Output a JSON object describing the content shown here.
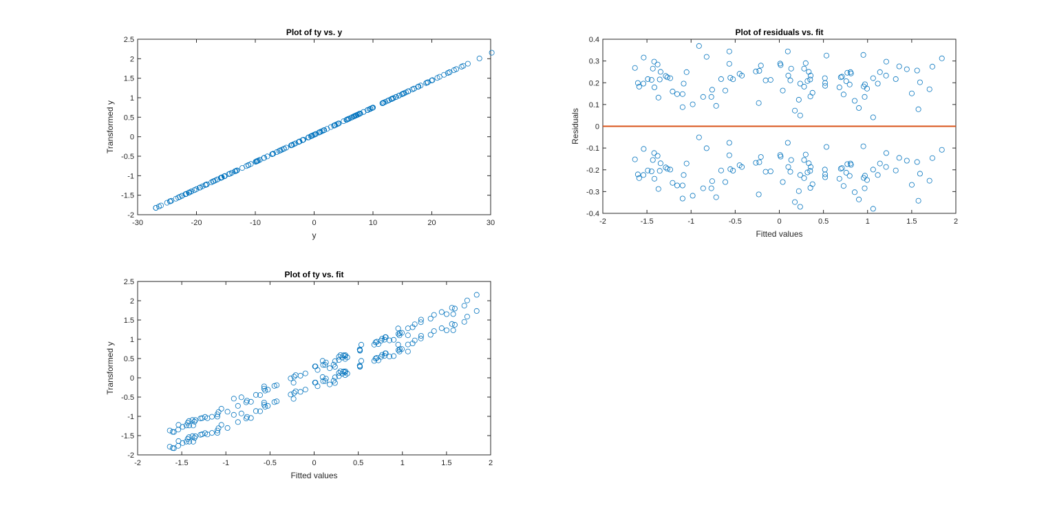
{
  "colors": {
    "marker": "#0072BD",
    "zero_line": "#D95319",
    "axis": "#262626"
  },
  "fitted": [
    -1.636,
    -1.603,
    -1.588,
    -1.537,
    -1.54,
    -1.49,
    -1.448,
    -1.433,
    -1.418,
    -1.415,
    -1.379,
    -1.37,
    -1.355,
    -1.346,
    -1.287,
    -1.269,
    -1.236,
    -1.209,
    -1.158,
    -1.096,
    -1.096,
    -1.084,
    -1.051,
    -0.982,
    -0.91,
    -0.863,
    -0.824,
    -0.77,
    -0.761,
    -0.716,
    -0.66,
    -0.612,
    -0.567,
    -0.567,
    -0.555,
    -0.525,
    -0.451,
    -0.424,
    -0.266,
    -0.233,
    -0.227,
    -0.209,
    -0.155,
    -0.099,
    0.009,
    0.015,
    0.039,
    0.096,
    0.101,
    0.125,
    0.134,
    0.176,
    0.221,
    0.236,
    0.236,
    0.281,
    0.281,
    0.299,
    0.319,
    0.334,
    0.349,
    0.352,
    0.355,
    0.376,
    0.516,
    0.519,
    0.519,
    0.534,
    0.681,
    0.696,
    0.71,
    0.728,
    0.758,
    0.77,
    0.797,
    0.806,
    0.812,
    0.854,
    0.901,
    0.952,
    0.955,
    0.967,
    0.97,
    0.994,
    1.063,
    1.063,
    1.116,
    1.14,
    1.212,
    1.209,
    1.319,
    1.358,
    1.445,
    1.501,
    1.561,
    1.576,
    1.594,
    1.701,
    1.734,
    1.842
  ],
  "residuals_upper": [
    0.268,
    0.199,
    0.182,
    0.316,
    0.196,
    0.217,
    0.213,
    0.265,
    0.297,
    0.179,
    0.284,
    0.132,
    0.215,
    0.25,
    0.231,
    0.225,
    0.221,
    0.16,
    0.148,
    0.148,
    0.088,
    0.196,
    0.249,
    0.101,
    0.369,
    0.135,
    0.319,
    0.135,
    0.168,
    0.094,
    0.217,
    0.164,
    0.344,
    0.287,
    0.223,
    0.216,
    0.241,
    0.233,
    0.252,
    0.107,
    0.255,
    0.279,
    0.211,
    0.213,
    0.288,
    0.281,
    0.164,
    0.344,
    0.233,
    0.211,
    0.265,
    0.072,
    0.122,
    0.05,
    0.196,
    0.182,
    0.265,
    0.29,
    0.208,
    0.25,
    0.215,
    0.137,
    0.233,
    0.154,
    0.221,
    0.199,
    0.186,
    0.325,
    0.179,
    0.225,
    0.228,
    0.146,
    0.207,
    0.246,
    0.192,
    0.249,
    0.243,
    0.117,
    0.084,
    0.328,
    0.183,
    0.135,
    0.193,
    0.173,
    0.041,
    0.221,
    0.196,
    0.249,
    0.297,
    0.233,
    0.217,
    0.275,
    0.262,
    0.151,
    0.256,
    0.078,
    0.202,
    0.17,
    0.274,
    0.312
  ],
  "residuals_lower": [
    -0.152,
    -0.221,
    -0.238,
    -0.104,
    -0.224,
    -0.203,
    -0.207,
    -0.155,
    -0.123,
    -0.241,
    -0.136,
    -0.288,
    -0.205,
    -0.17,
    -0.189,
    -0.195,
    -0.199,
    -0.26,
    -0.272,
    -0.272,
    -0.332,
    -0.224,
    -0.171,
    -0.319,
    -0.051,
    -0.285,
    -0.101,
    -0.285,
    -0.252,
    -0.326,
    -0.203,
    -0.256,
    -0.076,
    -0.133,
    -0.197,
    -0.204,
    -0.179,
    -0.187,
    -0.168,
    -0.313,
    -0.165,
    -0.141,
    -0.209,
    -0.207,
    -0.132,
    -0.139,
    -0.256,
    -0.076,
    -0.187,
    -0.209,
    -0.155,
    -0.348,
    -0.298,
    -0.37,
    -0.224,
    -0.238,
    -0.155,
    -0.13,
    -0.212,
    -0.17,
    -0.205,
    -0.283,
    -0.187,
    -0.266,
    -0.199,
    -0.221,
    -0.234,
    -0.095,
    -0.241,
    -0.195,
    -0.192,
    -0.274,
    -0.213,
    -0.174,
    -0.228,
    -0.171,
    -0.177,
    -0.303,
    -0.336,
    -0.092,
    -0.237,
    -0.285,
    -0.227,
    -0.247,
    -0.379,
    -0.199,
    -0.224,
    -0.171,
    -0.123,
    -0.187,
    -0.203,
    -0.145,
    -0.158,
    -0.269,
    -0.164,
    -0.342,
    -0.218,
    -0.25,
    -0.146,
    -0.108
  ],
  "chart_data": [
    {
      "id": "ty_vs_y",
      "type": "scatter",
      "title": "Plot of ty vs. y",
      "xlabel": "y",
      "ylabel": "Transformed y",
      "xlim": [
        -30,
        30
      ],
      "ylim": [
        -2,
        2.5
      ],
      "xticks": [
        "-30",
        "-20",
        "-10",
        "0",
        "10",
        "20",
        "30"
      ],
      "yticks": [
        "-2",
        "-1.5",
        "-1",
        "-0.5",
        "0",
        "0.5",
        "1",
        "1.5",
        "2",
        "2.5"
      ],
      "transform": {
        "ty_per_y": 0.0697,
        "ty_at_y0": 0.05
      }
    },
    {
      "id": "residuals_vs_fit",
      "type": "scatter",
      "title": "Plot of residuals vs. fit",
      "xlabel": "Fitted values",
      "ylabel": "Residuals",
      "xlim": [
        -2,
        2
      ],
      "ylim": [
        -0.4,
        0.4
      ],
      "xticks": [
        "-2",
        "-1.5",
        "-1",
        "-0.5",
        "0",
        "0.5",
        "1",
        "1.5",
        "2"
      ],
      "yticks": [
        "-0.4",
        "-0.3",
        "-0.2",
        "-0.1",
        "0",
        "0.1",
        "0.2",
        "0.3",
        "0.4"
      ],
      "reference_line_y": 0
    },
    {
      "id": "ty_vs_fit",
      "type": "scatter",
      "title": "Plot of ty vs. fit",
      "xlabel": "Fitted values",
      "ylabel": "Transformed y",
      "xlim": [
        -2,
        2
      ],
      "ylim": [
        -2,
        2.5
      ],
      "xticks": [
        "-2",
        "-1.5",
        "-1",
        "-0.5",
        "0",
        "0.5",
        "1",
        "1.5",
        "2"
      ],
      "yticks": [
        "-2",
        "-1.5",
        "-1",
        "-0.5",
        "0",
        "0.5",
        "1",
        "1.5",
        "2",
        "2.5"
      ]
    }
  ]
}
